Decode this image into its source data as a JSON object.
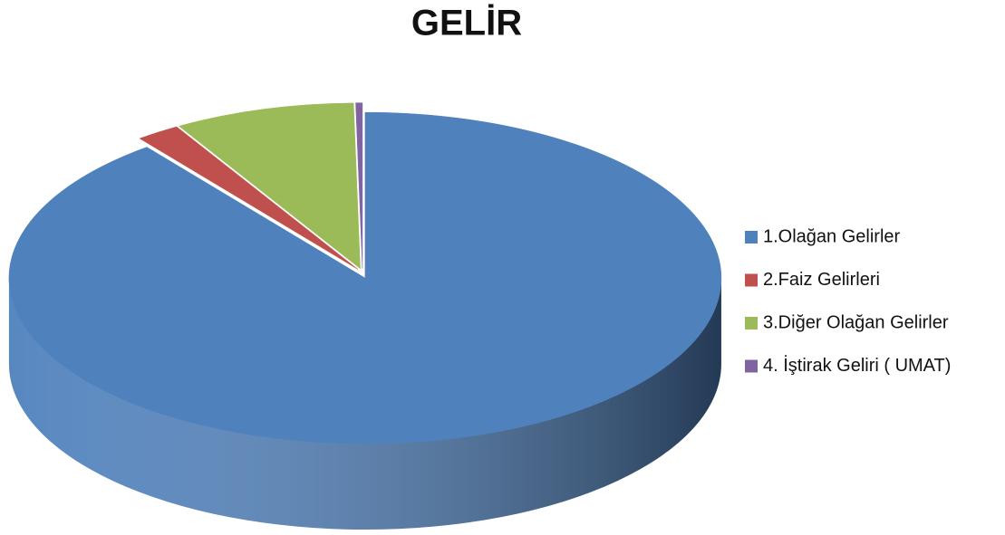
{
  "chart_data": {
    "type": "pie",
    "title": "GELİR",
    "categories": [
      "1.Olağan Gelirler",
      "2.Faiz Gelirleri",
      "3.Diğer Olağan Gelirler",
      "4. İştirak Geliri ( UMAT)"
    ],
    "values": [
      89.5,
      2,
      8.2,
      0.3
    ],
    "colors": [
      "#4f81bd",
      "#c0504d",
      "#9bbb59",
      "#8064a2"
    ],
    "legend": "right"
  }
}
